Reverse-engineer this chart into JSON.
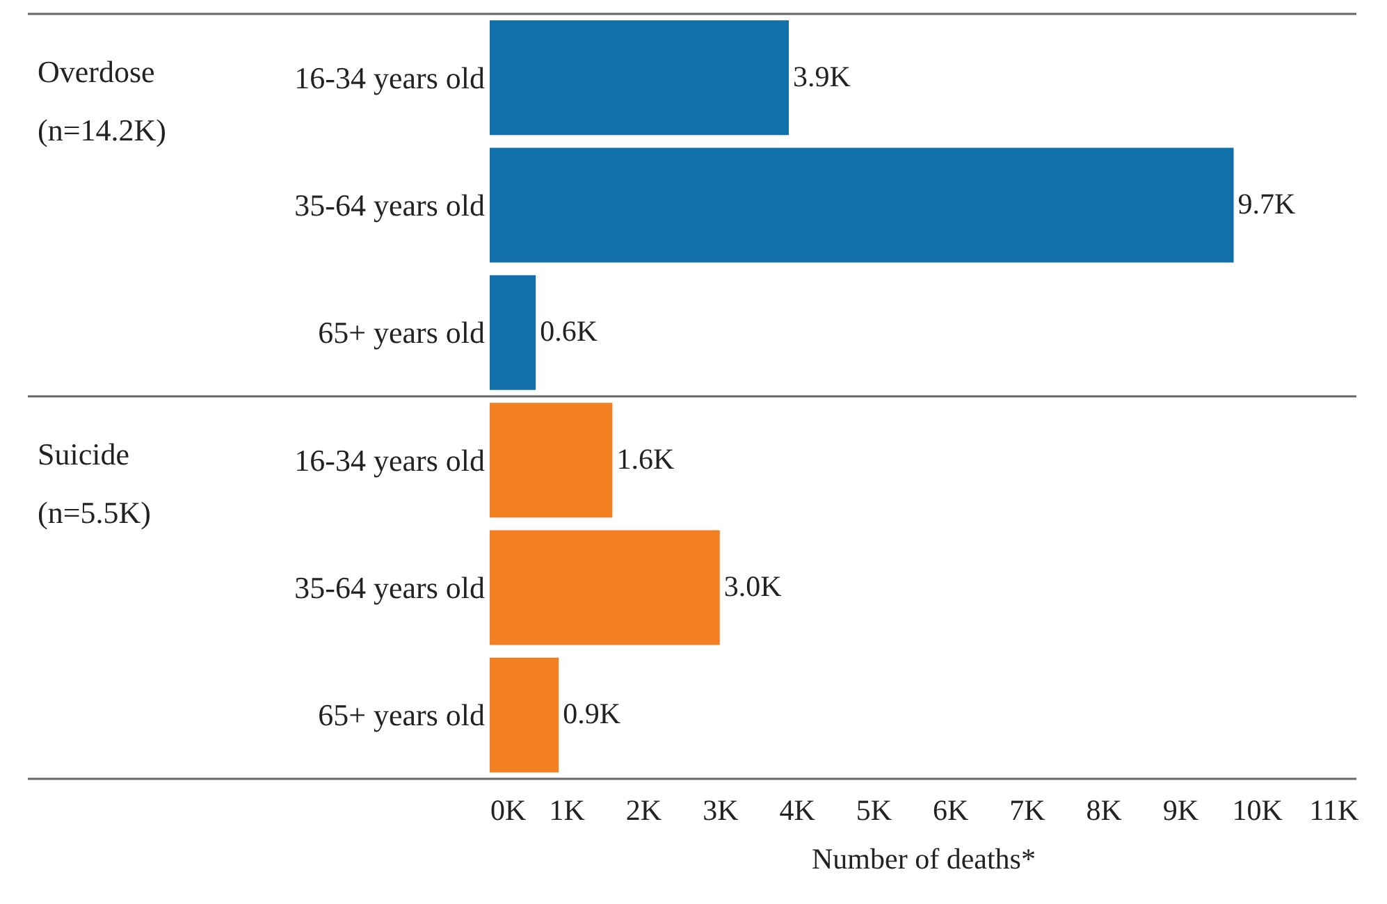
{
  "chart_data": {
    "type": "bar",
    "orientation": "horizontal",
    "xlabel": "Number of deaths*",
    "categories": [
      "16-34 years old",
      "35-64 years old",
      "65+ years old",
      "16-34 years old",
      "35-64 years old",
      "65+ years old"
    ],
    "series": [
      {
        "color": "#1170aa",
        "values": [
          3.9,
          9.7,
          0.6,
          null,
          null,
          null
        ],
        "value_labels": [
          "3.9K",
          "9.7K",
          "0.6K",
          null,
          null,
          null
        ]
      },
      {
        "color": "#f28022",
        "values": [
          null,
          null,
          null,
          1.6,
          3.0,
          0.9
        ],
        "value_labels": [
          null,
          null,
          null,
          "1.6K",
          "3.0K",
          "0.9K"
        ]
      }
    ],
    "xlim": [
      0,
      11.3
    ],
    "xticks": [
      {
        "value": 0,
        "label": "0K"
      },
      {
        "value": 1,
        "label": "1K"
      },
      {
        "value": 2,
        "label": "2K"
      },
      {
        "value": 3,
        "label": "3K"
      },
      {
        "value": 4,
        "label": "4K"
      },
      {
        "value": 5,
        "label": "5K"
      },
      {
        "value": 6,
        "label": "6K"
      },
      {
        "value": 7,
        "label": "7K"
      },
      {
        "value": 8,
        "label": "8K"
      },
      {
        "value": 9,
        "label": "9K"
      },
      {
        "value": 10,
        "label": "10K"
      },
      {
        "value": 11,
        "label": "11K"
      }
    ],
    "annotations": [
      "Overdose (n=14.2K)",
      "Suicide (n=5.5K)"
    ],
    "grid": false
  }
}
